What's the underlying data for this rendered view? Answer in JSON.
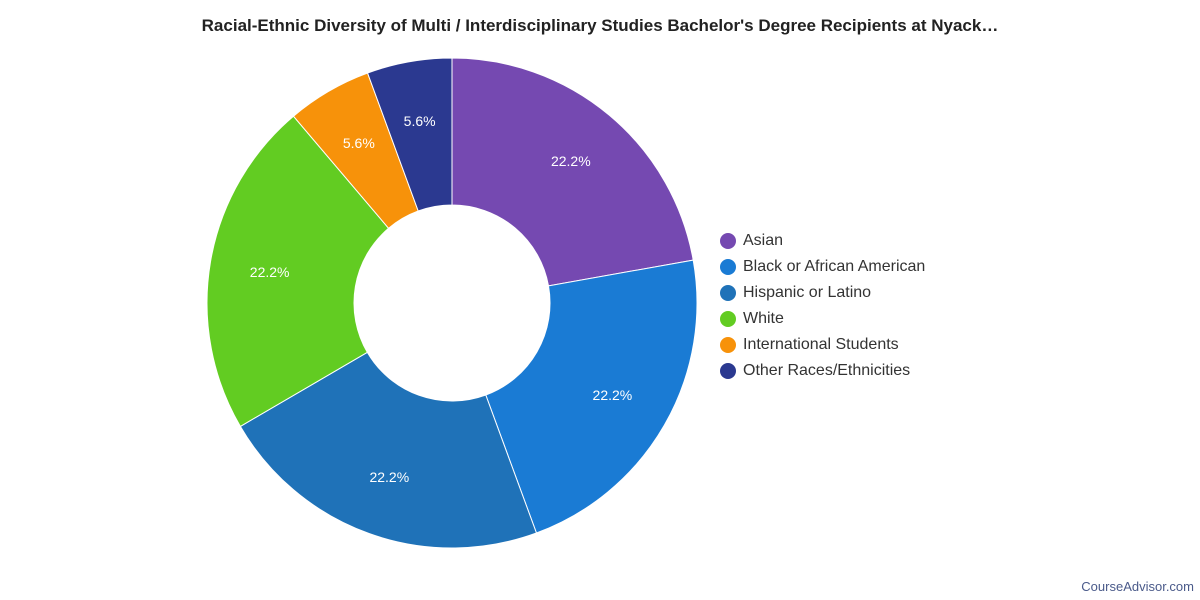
{
  "chart_data": {
    "type": "pie",
    "donut": true,
    "title": "Racial-Ethnic Diversity of Multi / Interdisciplinary Studies Bachelor's Degree Recipients at Nyack…",
    "legend_position": "right",
    "slices": [
      {
        "label": "Asian",
        "value": 22.2,
        "display": "22.2%",
        "color": "#7549b1"
      },
      {
        "label": "Black or African American",
        "value": 22.2,
        "display": "22.2%",
        "color": "#1a7bd4"
      },
      {
        "label": "Hispanic or Latino",
        "value": 22.2,
        "display": "22.2%",
        "color": "#1f72b8"
      },
      {
        "label": "White",
        "value": 22.2,
        "display": "22.2%",
        "color": "#62cc22"
      },
      {
        "label": "International Students",
        "value": 5.6,
        "display": "5.6%",
        "color": "#f7920a"
      },
      {
        "label": "Other Races/Ethnicities",
        "value": 5.6,
        "display": "5.6%",
        "color": "#2b3990"
      }
    ]
  },
  "footer": {
    "credit": "CourseAdvisor.com"
  }
}
